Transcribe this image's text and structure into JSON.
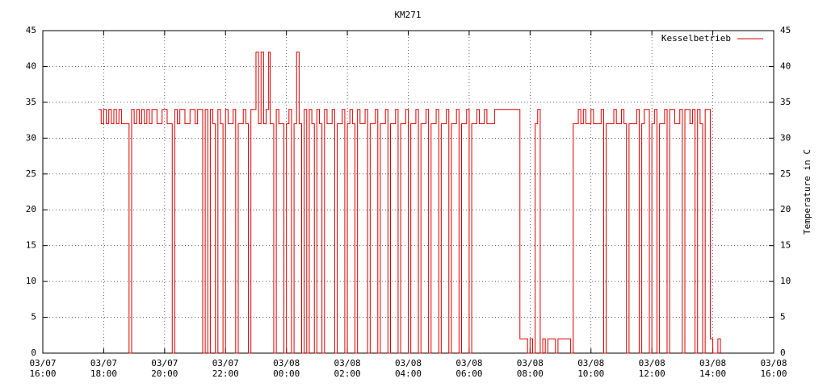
{
  "chart_data": {
    "type": "step",
    "title": "KM271",
    "y2label": "Temperature in C",
    "xlim": [
      "03/07 16:00",
      "03/08 16:00"
    ],
    "xticks": [
      "03/07 16:00",
      "03/07 18:00",
      "03/07 20:00",
      "03/07 22:00",
      "03/08 00:00",
      "03/08 02:00",
      "03/08 04:00",
      "03/08 06:00",
      "03/08 08:00",
      "03/08 10:00",
      "03/08 12:00",
      "03/08 14:00",
      "03/08 16:00"
    ],
    "ylim": [
      0,
      45
    ],
    "yticks": [
      0,
      5,
      10,
      15,
      20,
      25,
      30,
      35,
      40,
      45
    ],
    "y2lim": [
      0,
      45
    ],
    "y2ticks": [
      0,
      5,
      10,
      15,
      20,
      25,
      30,
      35,
      40,
      45
    ],
    "grid": true,
    "legend": "top-right",
    "x": [
      "03/07 17:50",
      "03/07 17:55",
      "03/07 18:00",
      "03/07 18:05",
      "03/07 18:10",
      "03/07 18:15",
      "03/07 18:20",
      "03/07 18:25",
      "03/07 18:30",
      "03/07 18:35",
      "03/07 18:50",
      "03/07 18:55",
      "03/07 19:00",
      "03/07 19:05",
      "03/07 19:10",
      "03/07 19:15",
      "03/07 19:20",
      "03/07 19:25",
      "03/07 19:30",
      "03/07 19:35",
      "03/07 19:45",
      "03/07 19:55",
      "03/07 20:05",
      "03/07 20:15",
      "03/07 20:20",
      "03/07 20:25",
      "03/07 20:30",
      "03/07 20:40",
      "03/07 20:50",
      "03/07 21:00",
      "03/07 21:05",
      "03/07 21:15",
      "03/07 21:20",
      "03/07 21:25",
      "03/07 21:30",
      "03/07 21:35",
      "03/07 21:40",
      "03/07 21:45",
      "03/07 21:50",
      "03/07 21:55",
      "03/07 22:00",
      "03/07 22:05",
      "03/07 22:15",
      "03/07 22:20",
      "03/07 22:25",
      "03/07 22:35",
      "03/07 22:40",
      "03/07 22:45",
      "03/07 22:50",
      "03/07 23:00",
      "03/07 23:05",
      "03/07 23:10",
      "03/07 23:15",
      "03/07 23:20",
      "03/07 23:25",
      "03/07 23:28",
      "03/07 23:35",
      "03/07 23:40",
      "03/07 23:45",
      "03/07 23:55",
      "03/08 00:00",
      "03/08 00:05",
      "03/08 00:10",
      "03/08 00:15",
      "03/08 00:20",
      "03/08 00:25",
      "03/08 00:30",
      "03/08 00:35",
      "03/08 00:40",
      "03/08 00:45",
      "03/08 00:50",
      "03/08 00:55",
      "03/08 01:00",
      "03/08 01:05",
      "03/08 01:10",
      "03/08 01:15",
      "03/08 01:20",
      "03/08 01:30",
      "03/08 01:35",
      "03/08 01:40",
      "03/08 01:50",
      "03/08 01:55",
      "03/08 02:00",
      "03/08 02:05",
      "03/08 02:10",
      "03/08 02:15",
      "03/08 02:20",
      "03/08 02:25",
      "03/08 02:35",
      "03/08 02:40",
      "03/08 02:45",
      "03/08 02:55",
      "03/08 03:00",
      "03/08 03:05",
      "03/08 03:15",
      "03/08 03:20",
      "03/08 03:25",
      "03/08 03:35",
      "03/08 03:40",
      "03/08 03:45",
      "03/08 03:55",
      "03/08 04:00",
      "03/08 04:05",
      "03/08 04:15",
      "03/08 04:20",
      "03/08 04:25",
      "03/08 04:35",
      "03/08 04:40",
      "03/08 04:45",
      "03/08 04:55",
      "03/08 05:00",
      "03/08 05:05",
      "03/08 05:15",
      "03/08 05:20",
      "03/08 05:25",
      "03/08 05:35",
      "03/08 05:40",
      "03/08 05:45",
      "03/08 05:55",
      "03/08 06:00",
      "03/08 06:05",
      "03/08 06:15",
      "03/08 06:20",
      "03/08 06:30",
      "03/08 06:35",
      "03/08 06:50",
      "03/08 07:40",
      "03/08 07:55",
      "03/08 08:00",
      "03/08 08:05",
      "03/08 08:10",
      "03/08 08:15",
      "03/08 08:20",
      "03/08 08:25",
      "03/08 08:30",
      "03/08 08:35",
      "03/08 08:50",
      "03/08 08:55",
      "03/08 09:20",
      "03/08 09:25",
      "03/08 09:35",
      "03/08 09:40",
      "03/08 09:45",
      "03/08 09:50",
      "03/08 10:00",
      "03/08 10:05",
      "03/08 10:20",
      "03/08 10:25",
      "03/08 10:30",
      "03/08 10:45",
      "03/08 10:50",
      "03/08 11:00",
      "03/08 11:05",
      "03/08 11:10",
      "03/08 11:15",
      "03/08 11:30",
      "03/08 11:35",
      "03/08 11:40",
      "03/08 11:45",
      "03/08 11:55",
      "03/08 12:00",
      "03/08 12:05",
      "03/08 12:10",
      "03/08 12:15",
      "03/08 12:25",
      "03/08 12:30",
      "03/08 12:35",
      "03/08 12:45",
      "03/08 12:55",
      "03/08 13:00",
      "03/08 13:05",
      "03/08 13:15",
      "03/08 13:20",
      "03/08 13:25",
      "03/08 13:30",
      "03/08 13:35",
      "03/08 13:40",
      "03/08 13:45",
      "03/08 13:55",
      "03/08 14:00",
      "03/08 14:10",
      "03/08 14:15"
    ],
    "series": [
      {
        "name": "Kesselbetrieb",
        "color": "#dd0000",
        "values": [
          34,
          32,
          34,
          32,
          34,
          32,
          34,
          32,
          34,
          32,
          0,
          34,
          32,
          34,
          32,
          34,
          32,
          34,
          32,
          34,
          32,
          34,
          32,
          0,
          34,
          32,
          34,
          32,
          34,
          32,
          34,
          0,
          34,
          0,
          34,
          32,
          0,
          34,
          32,
          0,
          34,
          32,
          34,
          0,
          32,
          34,
          32,
          0,
          34,
          42,
          32,
          42,
          32,
          34,
          42,
          32,
          0,
          34,
          32,
          0,
          32,
          34,
          0,
          32,
          42,
          32,
          0,
          34,
          0,
          34,
          32,
          0,
          34,
          32,
          0,
          34,
          32,
          34,
          0,
          32,
          34,
          0,
          32,
          34,
          32,
          0,
          34,
          32,
          34,
          0,
          32,
          34,
          0,
          32,
          34,
          0,
          32,
          34,
          0,
          32,
          34,
          0,
          32,
          34,
          0,
          32,
          34,
          0,
          32,
          34,
          0,
          32,
          34,
          0,
          32,
          34,
          0,
          32,
          34,
          0,
          32,
          34,
          32,
          34,
          32,
          34,
          2,
          0,
          2,
          0,
          32,
          34,
          0,
          2,
          0,
          2,
          0,
          2,
          0,
          32,
          34,
          32,
          34,
          32,
          34,
          32,
          34,
          0,
          32,
          34,
          32,
          34,
          32,
          0,
          32,
          34,
          0,
          32,
          34,
          0,
          32,
          34,
          0,
          32,
          34,
          0,
          34,
          32,
          34,
          0,
          34,
          32,
          34,
          0,
          34,
          32,
          0,
          34,
          2,
          0,
          2,
          0
        ]
      }
    ]
  }
}
